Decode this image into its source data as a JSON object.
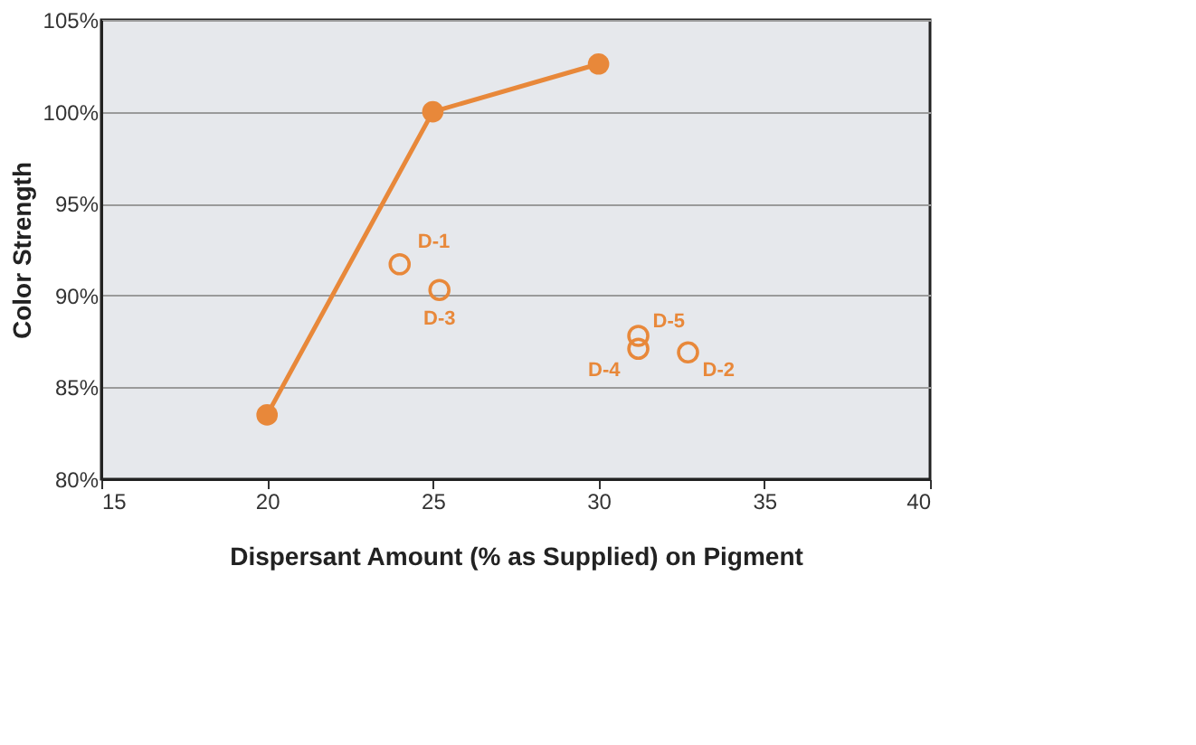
{
  "chart_data": {
    "type": "scatter",
    "xlabel": "Dispersant Amount  (% as Supplied) on Pigment",
    "ylabel": "Color Strength",
    "xlim": [
      15,
      40
    ],
    "xticks": [
      15,
      20,
      25,
      30,
      35,
      40
    ],
    "ylim": [
      80,
      105
    ],
    "yticks": [
      {
        "value": 80,
        "label": "80%"
      },
      {
        "value": 85,
        "label": "85%"
      },
      {
        "value": 90,
        "label": "90%"
      },
      {
        "value": 95,
        "label": "95%"
      },
      {
        "value": 100,
        "label": "100%"
      },
      {
        "value": 105,
        "label": "105%"
      }
    ],
    "grid": "y",
    "series": [
      {
        "type": "line",
        "marker": "circle",
        "line_style": "solid",
        "color": "#e8883a",
        "x": [
          20,
          25,
          30
        ],
        "values": [
          83.5,
          100,
          102.6
        ]
      },
      {
        "marker": "circle",
        "color": "#e8883a",
        "x": [
          24.0,
          25.2,
          31.2,
          31.2,
          32.7
        ],
        "values": [
          91.7,
          90.3,
          87.8,
          87.1,
          86.9
        ]
      }
    ],
    "annotations": [
      {
        "text": "D-1",
        "x": 24.0,
        "y": 91.7
      },
      {
        "text": "D-3",
        "x": 25.2,
        "y": 90.3
      },
      {
        "text": "D-5",
        "x": 31.2,
        "y": 87.8
      },
      {
        "text": "D-4",
        "x": 31.2,
        "y": 87.1
      },
      {
        "text": "D-2",
        "x": 32.7,
        "y": 86.9
      }
    ]
  }
}
